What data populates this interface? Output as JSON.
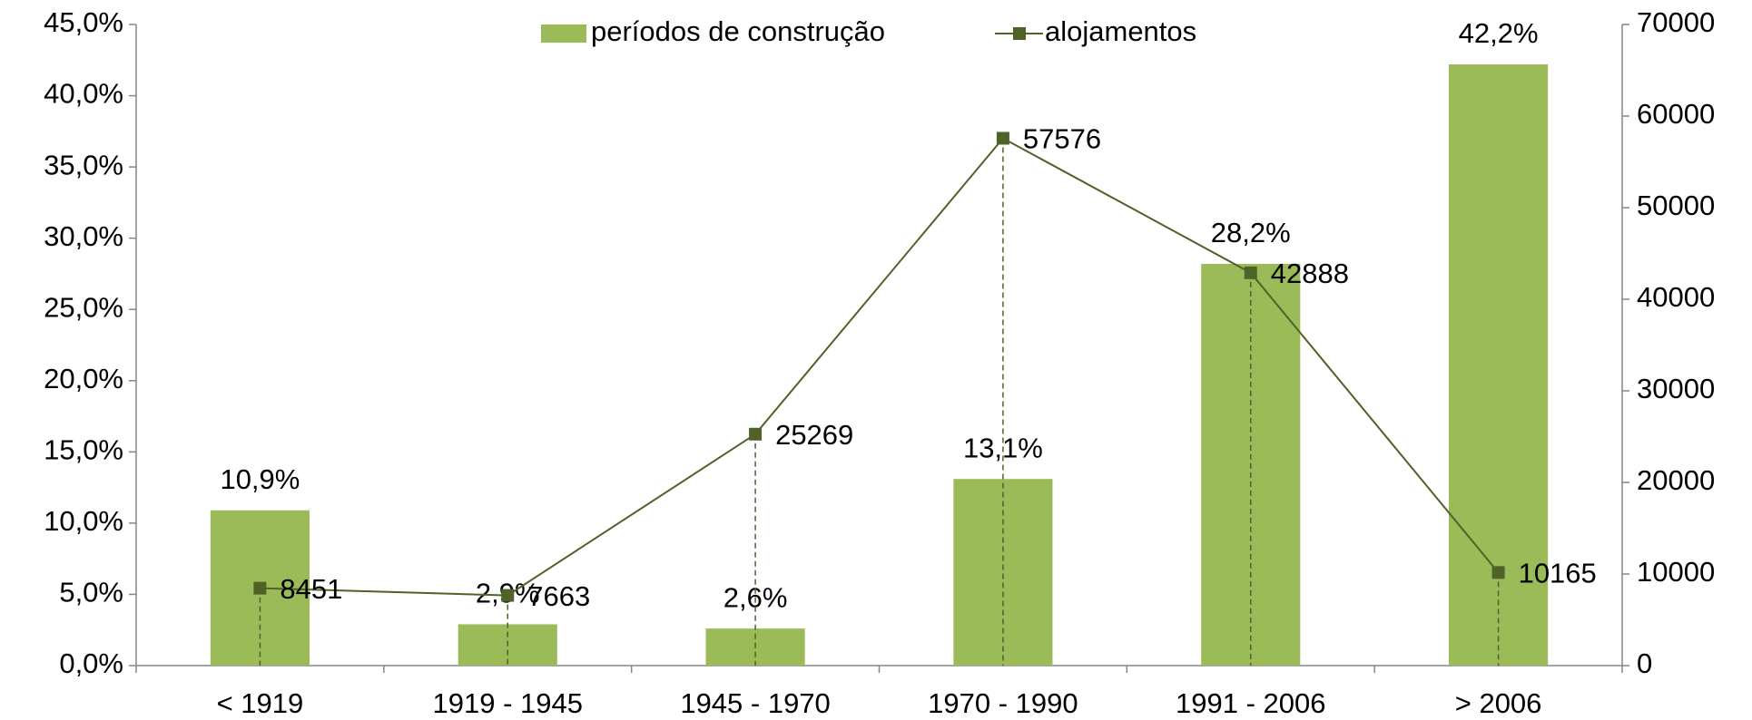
{
  "chart_data": {
    "type": "bar-line",
    "categories": [
      "< 1919",
      "1919 - 1945",
      "1945 - 1970",
      "1970 - 1990",
      "1991 - 2006",
      "> 2006"
    ],
    "series": [
      {
        "name": "períodos de construção",
        "type": "bar",
        "color": "#9bbb59",
        "values": [
          10.9,
          2.9,
          2.6,
          13.1,
          28.2,
          42.2
        ],
        "value_labels": [
          "10,9%",
          "2,9%",
          "2,6%",
          "13,1%",
          "28,2%",
          "42,2%"
        ]
      },
      {
        "name": "alojamentos",
        "type": "line",
        "axis": "y2",
        "color": "#4f6228",
        "values": [
          8451,
          7663,
          25269,
          57576,
          42888,
          10165
        ]
      }
    ],
    "ylim": [
      0,
      45
    ],
    "yticks": [
      {
        "value": 0,
        "label": "0,0%"
      },
      {
        "value": 5,
        "label": "5,0%"
      },
      {
        "value": 10,
        "label": "10,0%"
      },
      {
        "value": 15,
        "label": "15,0%"
      },
      {
        "value": 20,
        "label": "20,0%"
      },
      {
        "value": 25,
        "label": "25,0%"
      },
      {
        "value": 30,
        "label": "30,0%"
      },
      {
        "value": 35,
        "label": "35,0%"
      },
      {
        "value": 40,
        "label": "40,0%"
      },
      {
        "value": 45,
        "label": "45,0%"
      }
    ],
    "y2lim": [
      0,
      70000
    ],
    "y2ticks": [
      0,
      10000,
      20000,
      30000,
      40000,
      50000,
      60000,
      70000
    ],
    "legend": "top"
  }
}
